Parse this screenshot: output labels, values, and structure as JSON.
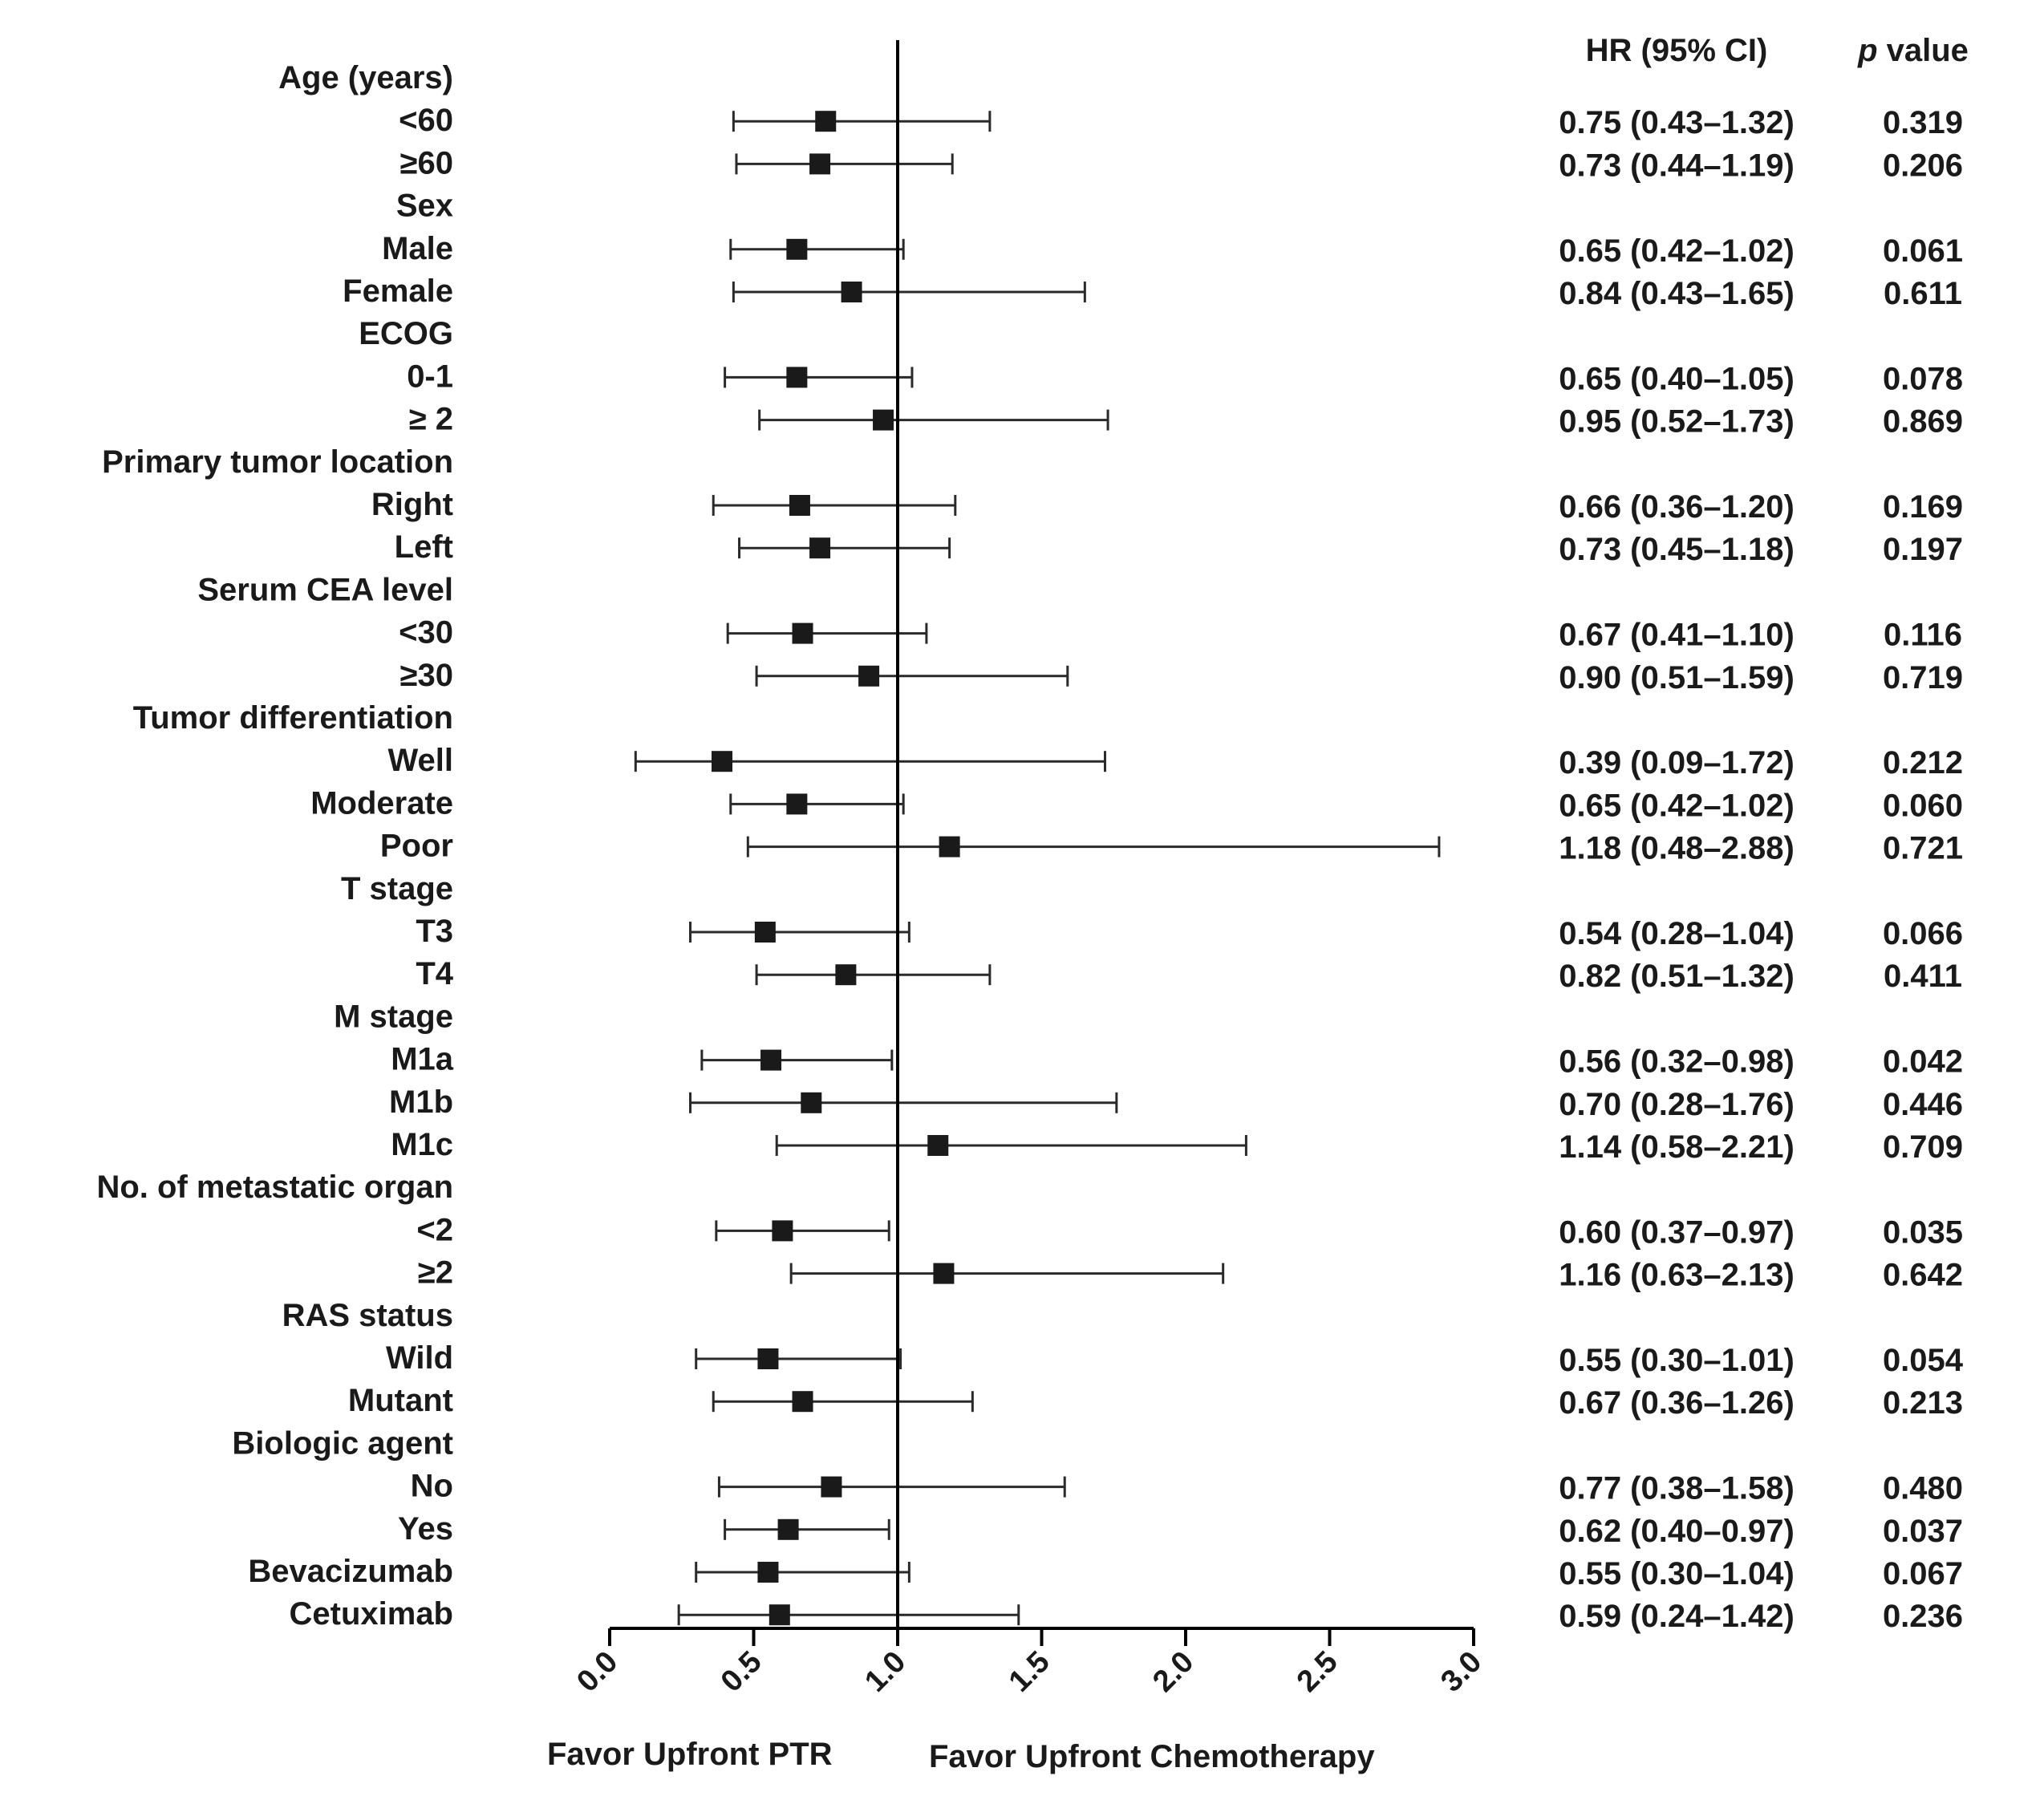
{
  "chart_data": {
    "type": "forest",
    "headers": {
      "hr": "HR (95% CI)",
      "p_italic": "p",
      "p_rest": " value"
    },
    "xlim": [
      0.0,
      3.0
    ],
    "ticks": [
      "0.0",
      "0.5",
      "1.0",
      "1.5",
      "2.0",
      "2.5",
      "3.0"
    ],
    "reference_line": 1.0,
    "footer": {
      "left": "Favor Upfront PTR",
      "right": "Favor Upfront Chemotherapy"
    },
    "rows": [
      {
        "label": "Age (years)",
        "group": true
      },
      {
        "label": "<60",
        "hr": 0.75,
        "lo": 0.43,
        "hi": 1.32,
        "ci_text": "0.75 (0.43–1.32)",
        "p": "0.319"
      },
      {
        "label": "≥60",
        "hr": 0.73,
        "lo": 0.44,
        "hi": 1.19,
        "ci_text": "0.73 (0.44–1.19)",
        "p": "0.206"
      },
      {
        "label": "Sex",
        "group": true
      },
      {
        "label": "Male",
        "hr": 0.65,
        "lo": 0.42,
        "hi": 1.02,
        "ci_text": "0.65 (0.42–1.02)",
        "p": "0.061"
      },
      {
        "label": "Female",
        "hr": 0.84,
        "lo": 0.43,
        "hi": 1.65,
        "ci_text": "0.84 (0.43–1.65)",
        "p": "0.611"
      },
      {
        "label": "ECOG",
        "group": true
      },
      {
        "label": "0-1",
        "hr": 0.65,
        "lo": 0.4,
        "hi": 1.05,
        "ci_text": "0.65 (0.40–1.05)",
        "p": "0.078"
      },
      {
        "label": "≥ 2",
        "hr": 0.95,
        "lo": 0.52,
        "hi": 1.73,
        "ci_text": "0.95 (0.52–1.73)",
        "p": "0.869"
      },
      {
        "label": "Primary tumor location",
        "group": true
      },
      {
        "label": "Right",
        "hr": 0.66,
        "lo": 0.36,
        "hi": 1.2,
        "ci_text": "0.66 (0.36–1.20)",
        "p": "0.169"
      },
      {
        "label": "Left",
        "hr": 0.73,
        "lo": 0.45,
        "hi": 1.18,
        "ci_text": "0.73 (0.45–1.18)",
        "p": "0.197"
      },
      {
        "label": "Serum CEA level",
        "group": true
      },
      {
        "label": "<30",
        "hr": 0.67,
        "lo": 0.41,
        "hi": 1.1,
        "ci_text": "0.67 (0.41–1.10)",
        "p": "0.116"
      },
      {
        "label": "≥30",
        "hr": 0.9,
        "lo": 0.51,
        "hi": 1.59,
        "ci_text": "0.90 (0.51–1.59)",
        "p": "0.719"
      },
      {
        "label": "Tumor differentiation",
        "group": true
      },
      {
        "label": "Well",
        "hr": 0.39,
        "lo": 0.09,
        "hi": 1.72,
        "ci_text": "0.39 (0.09–1.72)",
        "p": "0.212"
      },
      {
        "label": "Moderate",
        "hr": 0.65,
        "lo": 0.42,
        "hi": 1.02,
        "ci_text": "0.65 (0.42–1.02)",
        "p": "0.060"
      },
      {
        "label": "Poor",
        "hr": 1.18,
        "lo": 0.48,
        "hi": 2.88,
        "ci_text": "1.18 (0.48–2.88)",
        "p": "0.721"
      },
      {
        "label": "T stage",
        "group": true
      },
      {
        "label": "T3",
        "hr": 0.54,
        "lo": 0.28,
        "hi": 1.04,
        "ci_text": "0.54 (0.28–1.04)",
        "p": "0.066"
      },
      {
        "label": "T4",
        "hr": 0.82,
        "lo": 0.51,
        "hi": 1.32,
        "ci_text": "0.82 (0.51–1.32)",
        "p": "0.411"
      },
      {
        "label": "M stage",
        "group": true
      },
      {
        "label": "M1a",
        "hr": 0.56,
        "lo": 0.32,
        "hi": 0.98,
        "ci_text": "0.56 (0.32–0.98)",
        "p": "0.042"
      },
      {
        "label": "M1b",
        "hr": 0.7,
        "lo": 0.28,
        "hi": 1.76,
        "ci_text": "0.70 (0.28–1.76)",
        "p": "0.446"
      },
      {
        "label": "M1c",
        "hr": 1.14,
        "lo": 0.58,
        "hi": 2.21,
        "ci_text": "1.14 (0.58–2.21)",
        "p": "0.709"
      },
      {
        "label": "No. of metastatic organ",
        "group": true
      },
      {
        "label": "<2",
        "hr": 0.6,
        "lo": 0.37,
        "hi": 0.97,
        "ci_text": "0.60 (0.37–0.97)",
        "p": "0.035"
      },
      {
        "label": "≥2",
        "hr": 1.16,
        "lo": 0.63,
        "hi": 2.13,
        "ci_text": "1.16 (0.63–2.13)",
        "p": "0.642"
      },
      {
        "label": "RAS status",
        "group": true
      },
      {
        "label": "Wild",
        "hr": 0.55,
        "lo": 0.3,
        "hi": 1.01,
        "ci_text": "0.55 (0.30–1.01)",
        "p": "0.054"
      },
      {
        "label": "Mutant",
        "hr": 0.67,
        "lo": 0.36,
        "hi": 1.26,
        "ci_text": "0.67 (0.36–1.26)",
        "p": "0.213"
      },
      {
        "label": "Biologic agent",
        "group": true
      },
      {
        "label": "No",
        "hr": 0.77,
        "lo": 0.38,
        "hi": 1.58,
        "ci_text": "0.77 (0.38–1.58)",
        "p": "0.480"
      },
      {
        "label": "Yes",
        "hr": 0.62,
        "lo": 0.4,
        "hi": 0.97,
        "ci_text": "0.62 (0.40–0.97)",
        "p": "0.037"
      },
      {
        "label": "Bevacizumab",
        "hr": 0.55,
        "lo": 0.3,
        "hi": 1.04,
        "ci_text": "0.55 (0.30–1.04)",
        "p": "0.067"
      },
      {
        "label": "Cetuximab",
        "hr": 0.59,
        "lo": 0.24,
        "hi": 1.42,
        "ci_text": "0.59 (0.24–1.42)",
        "p": "0.236"
      }
    ]
  }
}
